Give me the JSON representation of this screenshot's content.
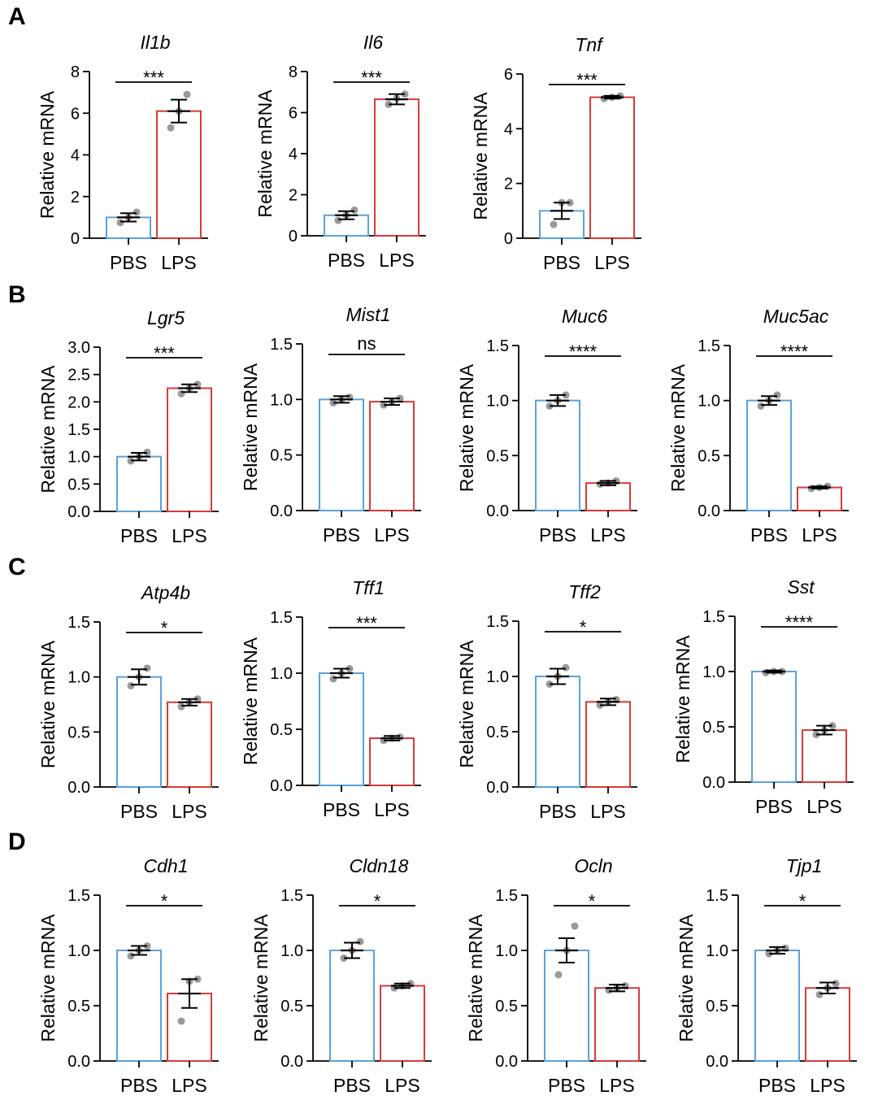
{
  "panels": [
    "A",
    "B",
    "C",
    "D"
  ],
  "colors": {
    "PBS": "#5aa2dc",
    "LPS": "#d83a3a",
    "point": "#999999",
    "axis": "#000000"
  },
  "chart_data": [
    {
      "type": "bar",
      "panel": "A",
      "title": "Il1b",
      "ylabel": "Relative mRNA",
      "categories": [
        "PBS",
        "LPS"
      ],
      "values": [
        1.0,
        6.1
      ],
      "errors": [
        0.2,
        0.55
      ],
      "points": [
        [
          0.75,
          1.0,
          1.25
        ],
        [
          5.3,
          6.1,
          6.9
        ]
      ],
      "significance": "***",
      "ylim": [
        0,
        8
      ],
      "yticks": [
        "0",
        "2",
        "4",
        "6",
        "8"
      ]
    },
    {
      "type": "bar",
      "panel": "A",
      "title": "Il6",
      "ylabel": "Relative mRNA",
      "categories": [
        "PBS",
        "LPS"
      ],
      "values": [
        1.0,
        6.65
      ],
      "errors": [
        0.2,
        0.25
      ],
      "points": [
        [
          0.75,
          1.0,
          1.25
        ],
        [
          6.4,
          6.7,
          6.9
        ]
      ],
      "significance": "***",
      "ylim": [
        0,
        8
      ],
      "yticks": [
        "0",
        "2",
        "4",
        "6",
        "8"
      ]
    },
    {
      "type": "bar",
      "panel": "A",
      "title": "Tnf",
      "ylabel": "Relative mRNA",
      "categories": [
        "PBS",
        "LPS"
      ],
      "values": [
        1.0,
        5.15
      ],
      "errors": [
        0.3,
        0.05
      ],
      "points": [
        [
          0.5,
          1.3,
          1.3
        ],
        [
          5.1,
          5.15,
          5.2
        ]
      ],
      "significance": "***",
      "ylim": [
        0,
        6
      ],
      "yticks": [
        "0",
        "2",
        "4",
        "6"
      ]
    },
    {
      "type": "bar",
      "panel": "B",
      "title": "Lgr5",
      "ylabel": "Relative mRNA",
      "categories": [
        "PBS",
        "LPS"
      ],
      "values": [
        1.0,
        2.25
      ],
      "errors": [
        0.07,
        0.07
      ],
      "points": [
        [
          0.92,
          1.0,
          1.08
        ],
        [
          2.15,
          2.25,
          2.32
        ]
      ],
      "significance": "***",
      "ylim": [
        0,
        3
      ],
      "yticks": [
        "0.0",
        "0.5",
        "1.0",
        "1.5",
        "2.0",
        "2.5",
        "3.0"
      ]
    },
    {
      "type": "bar",
      "panel": "B",
      "title": "Mist1",
      "ylabel": "Relative mRNA",
      "categories": [
        "PBS",
        "LPS"
      ],
      "values": [
        1.0,
        0.98
      ],
      "errors": [
        0.03,
        0.03
      ],
      "points": [
        [
          0.97,
          1.0,
          1.02
        ],
        [
          0.95,
          0.98,
          1.01
        ]
      ],
      "significance": "ns",
      "ylim": [
        0,
        1.5
      ],
      "yticks": [
        "0.0",
        "0.5",
        "1.0",
        "1.5"
      ]
    },
    {
      "type": "bar",
      "panel": "B",
      "title": "Muc6",
      "ylabel": "Relative mRNA",
      "categories": [
        "PBS",
        "LPS"
      ],
      "values": [
        1.0,
        0.25
      ],
      "errors": [
        0.05,
        0.02
      ],
      "points": [
        [
          0.95,
          1.0,
          1.05
        ],
        [
          0.24,
          0.25,
          0.27
        ]
      ],
      "significance": "****",
      "ylim": [
        0,
        1.5
      ],
      "yticks": [
        "0.0",
        "0.5",
        "1.0",
        "1.5"
      ]
    },
    {
      "type": "bar",
      "panel": "B",
      "title": "Muc5ac",
      "ylabel": "Relative mRNA",
      "categories": [
        "PBS",
        "LPS"
      ],
      "values": [
        1.0,
        0.21
      ],
      "errors": [
        0.04,
        0.01
      ],
      "points": [
        [
          0.95,
          1.0,
          1.05
        ],
        [
          0.2,
          0.21,
          0.22
        ]
      ],
      "significance": "****",
      "ylim": [
        0,
        1.5
      ],
      "yticks": [
        "0.0",
        "0.5",
        "1.0",
        "1.5"
      ]
    },
    {
      "type": "bar",
      "panel": "C",
      "title": "Atp4b",
      "ylabel": "Relative mRNA",
      "categories": [
        "PBS",
        "LPS"
      ],
      "values": [
        1.0,
        0.77
      ],
      "errors": [
        0.07,
        0.03
      ],
      "points": [
        [
          0.92,
          1.0,
          1.08
        ],
        [
          0.73,
          0.77,
          0.8
        ]
      ],
      "significance": "*",
      "ylim": [
        0,
        1.5
      ],
      "yticks": [
        "0.0",
        "0.5",
        "1.0",
        "1.5"
      ]
    },
    {
      "type": "bar",
      "panel": "C",
      "title": "Tff1",
      "ylabel": "Relative mRNA",
      "categories": [
        "PBS",
        "LPS"
      ],
      "values": [
        1.0,
        0.42
      ],
      "errors": [
        0.04,
        0.02
      ],
      "points": [
        [
          0.95,
          1.0,
          1.04
        ],
        [
          0.4,
          0.42,
          0.43
        ]
      ],
      "significance": "***",
      "ylim": [
        0,
        1.5
      ],
      "yticks": [
        "0.0",
        "0.5",
        "1.0",
        "1.5"
      ]
    },
    {
      "type": "bar",
      "panel": "C",
      "title": "Tff2",
      "ylabel": "Relative mRNA",
      "categories": [
        "PBS",
        "LPS"
      ],
      "values": [
        1.0,
        0.77
      ],
      "errors": [
        0.07,
        0.03
      ],
      "points": [
        [
          0.93,
          1.0,
          1.08
        ],
        [
          0.74,
          0.77,
          0.79
        ]
      ],
      "significance": "*",
      "ylim": [
        0,
        1.5
      ],
      "yticks": [
        "0.0",
        "0.5",
        "1.0",
        "1.5"
      ]
    },
    {
      "type": "bar",
      "panel": "C",
      "title": "Sst",
      "ylabel": "Relative mRNA",
      "categories": [
        "PBS",
        "LPS"
      ],
      "values": [
        1.0,
        0.47
      ],
      "errors": [
        0.01,
        0.04
      ],
      "points": [
        [
          0.99,
          1.0,
          1.0
        ],
        [
          0.43,
          0.47,
          0.51
        ]
      ],
      "significance": "****",
      "ylim": [
        0,
        1.5
      ],
      "yticks": [
        "0.0",
        "0.5",
        "1.0",
        "1.5"
      ]
    },
    {
      "type": "bar",
      "panel": "D",
      "title": "Cdh1",
      "ylabel": "Relative mRNA",
      "categories": [
        "PBS",
        "LPS"
      ],
      "values": [
        1.0,
        0.61
      ],
      "errors": [
        0.04,
        0.13
      ],
      "points": [
        [
          0.95,
          1.0,
          1.04
        ],
        [
          0.36,
          0.72,
          0.74
        ]
      ],
      "significance": "*",
      "ylim": [
        0,
        1.5
      ],
      "yticks": [
        "0.0",
        "0.5",
        "1.0",
        "1.5"
      ]
    },
    {
      "type": "bar",
      "panel": "D",
      "title": "Cldn18",
      "ylabel": "Relative mRNA",
      "categories": [
        "PBS",
        "LPS"
      ],
      "values": [
        1.0,
        0.68
      ],
      "errors": [
        0.07,
        0.02
      ],
      "points": [
        [
          0.93,
          1.0,
          1.08
        ],
        [
          0.66,
          0.68,
          0.7
        ]
      ],
      "significance": "*",
      "ylim": [
        0,
        1.5
      ],
      "yticks": [
        "0.0",
        "0.5",
        "1.0",
        "1.5"
      ]
    },
    {
      "type": "bar",
      "panel": "D",
      "title": "Ocln",
      "ylabel": "Relative mRNA",
      "categories": [
        "PBS",
        "LPS"
      ],
      "values": [
        1.0,
        0.66
      ],
      "errors": [
        0.11,
        0.03
      ],
      "points": [
        [
          0.78,
          1.0,
          1.22
        ],
        [
          0.64,
          0.66,
          0.68
        ]
      ],
      "significance": "*",
      "ylim": [
        0,
        1.5
      ],
      "yticks": [
        "0.0",
        "0.5",
        "1.0",
        "1.5"
      ]
    },
    {
      "type": "bar",
      "panel": "D",
      "title": "Tjp1",
      "ylabel": "Relative mRNA",
      "categories": [
        "PBS",
        "LPS"
      ],
      "values": [
        1.0,
        0.66
      ],
      "errors": [
        0.03,
        0.05
      ],
      "points": [
        [
          0.97,
          1.0,
          1.02
        ],
        [
          0.6,
          0.66,
          0.7
        ]
      ],
      "significance": "*",
      "ylim": [
        0,
        1.5
      ],
      "yticks": [
        "0.0",
        "0.5",
        "1.0",
        "1.5"
      ]
    }
  ]
}
